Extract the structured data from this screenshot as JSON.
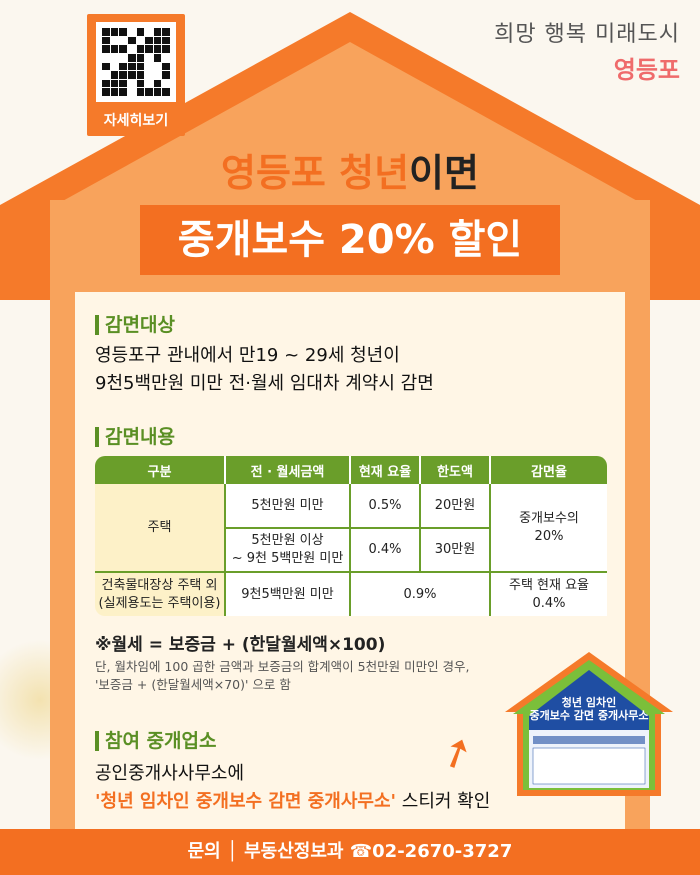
{
  "qr": {
    "label": "자세히보기"
  },
  "logo": {
    "slogan": "희망 행복 미래도시",
    "name": "영등포"
  },
  "headline": {
    "highlight": "영등포 청년",
    "rest": "이면",
    "banner": "중개보수 20% 할인"
  },
  "target": {
    "heading": "감면대상",
    "line1": "영등포구 관내에서 만19 ~ 29세 청년이",
    "line2": "9천5백만원 미만 전·월세 임대차 계약시 감면"
  },
  "content": {
    "heading": "감면내용",
    "table": {
      "headers": [
        "구분",
        "전 · 월세금액",
        "현재 요율",
        "한도액",
        "감면율"
      ],
      "house": "주택",
      "r1": [
        "5천만원 미만",
        "0.5%",
        "20만원"
      ],
      "r2amt1": "5천만원 이상",
      "r2amt2": "~ 9천 5백만원 미만",
      "r2": [
        "0.4%",
        "30만원"
      ],
      "rate1": "중개보수의",
      "rate2": "20%",
      "other1": "건축물대장상 주택 외",
      "other2": "(실제용도는 주택이용)",
      "otheramt": "9천5백만원 미만",
      "otherrate": "0.9%",
      "otherdisc1": "주택 현재 요율",
      "otherdisc2": "0.4%"
    },
    "formula": "※월세 = 보증금 + (한달월세액×100)",
    "note1": "단, 월차임에 100 곱한 금액과 보증금의 합계액이 5천만원 미만인 경우,",
    "note2": "'보증금 + (한달월세액×70)' 으로 함"
  },
  "agency": {
    "heading": "참여 중개업소",
    "line1": "공인중개사사무소에",
    "quote": "'청년 임차인 중개보수 감면 중개사무소'",
    "suffix": " 스티커 확인"
  },
  "sticker": {
    "l1": "청년 임차인",
    "l2": "중개보수 감면 중개사무소"
  },
  "footer": {
    "text": "문의 │ 부동산정보과 ☎02-2670-3727"
  },
  "colors": {
    "orange": "#f36f21",
    "green": "#6a9e2a"
  }
}
